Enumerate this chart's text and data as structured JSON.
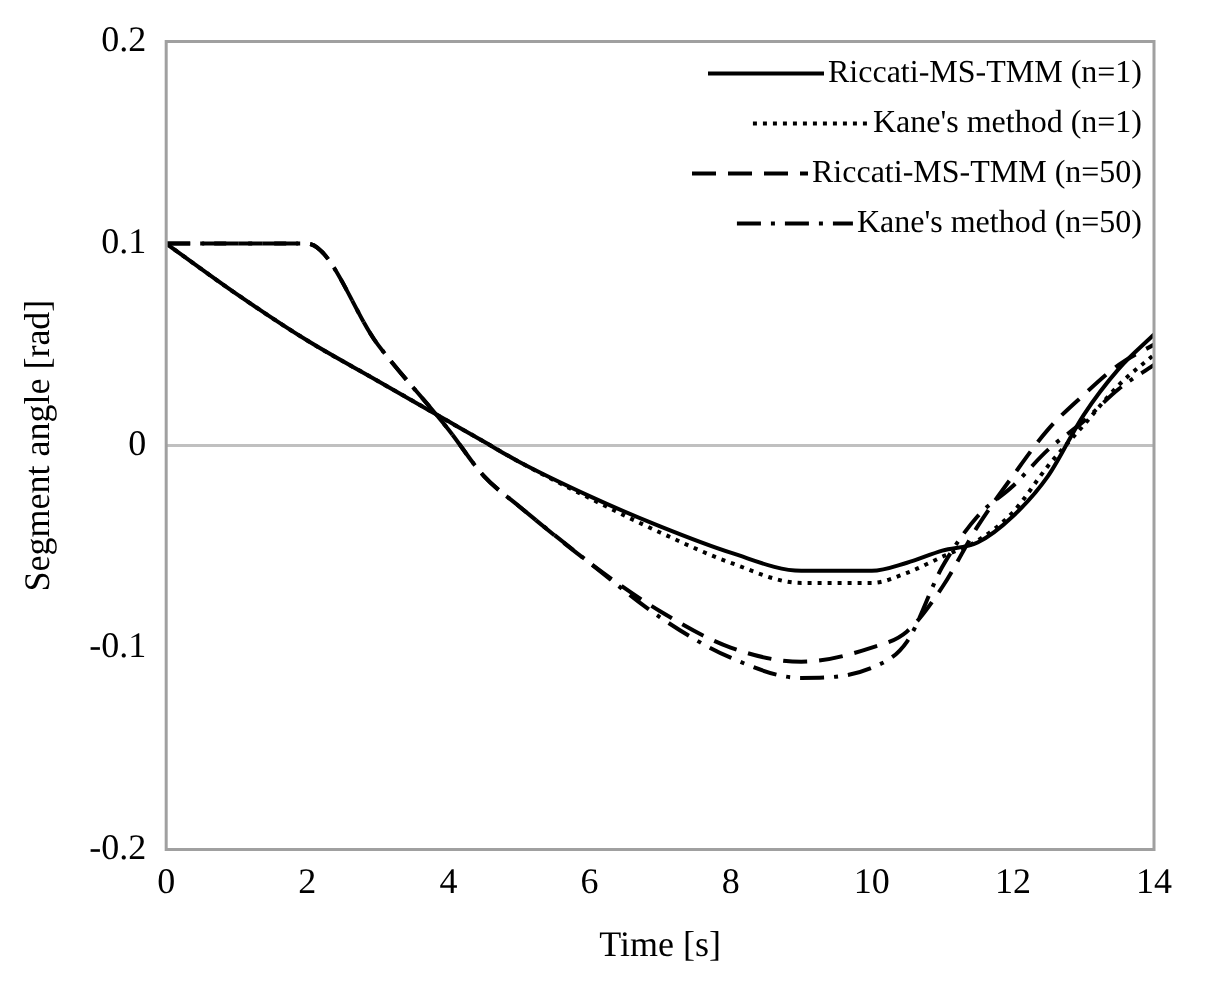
{
  "chart_data": {
    "type": "line",
    "xlabel": "Time [s]",
    "ylabel": "Segment angle [rad]",
    "xlim": [
      0,
      14
    ],
    "xticks": [
      0,
      2,
      4,
      6,
      8,
      10,
      12,
      14
    ],
    "ylim": [
      -0.2,
      0.2
    ],
    "yticks": [
      -0.2,
      -0.1,
      0,
      0.1,
      0.2
    ],
    "grid": false,
    "legend": "top right",
    "marker": "none",
    "ref_lines": [
      {
        "axis": "y",
        "value": 0,
        "color": "#c0c0c0"
      }
    ],
    "series": [
      {
        "name": "Riccati-MS-TMM (n=1)",
        "color": "#000000",
        "line_style": "solid",
        "x": [
          0,
          1,
          2,
          3,
          4,
          4.5,
          5,
          6,
          7,
          8,
          9,
          10,
          10.5,
          11,
          11.5,
          12,
          12.5,
          13,
          13.5,
          14
        ],
        "values": [
          0.1,
          0.075,
          0.052,
          0.032,
          0.012,
          0.002,
          -0.008,
          -0.025,
          -0.04,
          -0.053,
          -0.062,
          -0.062,
          -0.058,
          -0.052,
          -0.048,
          -0.035,
          -0.015,
          0.015,
          0.038,
          0.055
        ]
      },
      {
        "name": "Kane's method (n=1)",
        "color": "#000000",
        "line_style": "dotted",
        "x": [
          0,
          1,
          2,
          3,
          4,
          4.5,
          5,
          6,
          7,
          8,
          9,
          10,
          10.5,
          11,
          11.5,
          12,
          12.5,
          13,
          13.5,
          14
        ],
        "values": [
          0.1,
          0.075,
          0.052,
          0.032,
          0.012,
          0.002,
          -0.008,
          -0.026,
          -0.043,
          -0.058,
          -0.068,
          -0.068,
          -0.063,
          -0.055,
          -0.047,
          -0.033,
          -0.01,
          0.01,
          0.03,
          0.045
        ]
      },
      {
        "name": "Riccati-MS-TMM (n=50)",
        "color": "#000000",
        "line_style": "dashed",
        "x": [
          0,
          1,
          2,
          3,
          4,
          4.5,
          5,
          6,
          7,
          8,
          9,
          10,
          10.5,
          11,
          11.5,
          12,
          12.5,
          13,
          13.5,
          14
        ],
        "values": [
          0.1,
          0.1,
          0.1,
          0.05,
          0.008,
          -0.015,
          -0.03,
          -0.058,
          -0.082,
          -0.1,
          -0.107,
          -0.1,
          -0.092,
          -0.07,
          -0.04,
          -0.015,
          0.008,
          0.025,
          0.04,
          0.05
        ]
      },
      {
        "name": "Kane's method (n=50)",
        "color": "#000000",
        "line_style": "dashdot",
        "x": [
          0,
          1,
          2,
          3,
          4,
          4.5,
          5,
          6,
          7,
          8,
          9,
          10,
          10.5,
          11,
          11.5,
          12,
          12.5,
          13,
          13.5,
          14
        ],
        "values": [
          0.1,
          0.1,
          0.1,
          0.05,
          0.008,
          -0.015,
          -0.03,
          -0.058,
          -0.085,
          -0.105,
          -0.115,
          -0.11,
          -0.097,
          -0.06,
          -0.035,
          -0.02,
          -0.002,
          0.012,
          0.028,
          0.04
        ]
      }
    ]
  }
}
